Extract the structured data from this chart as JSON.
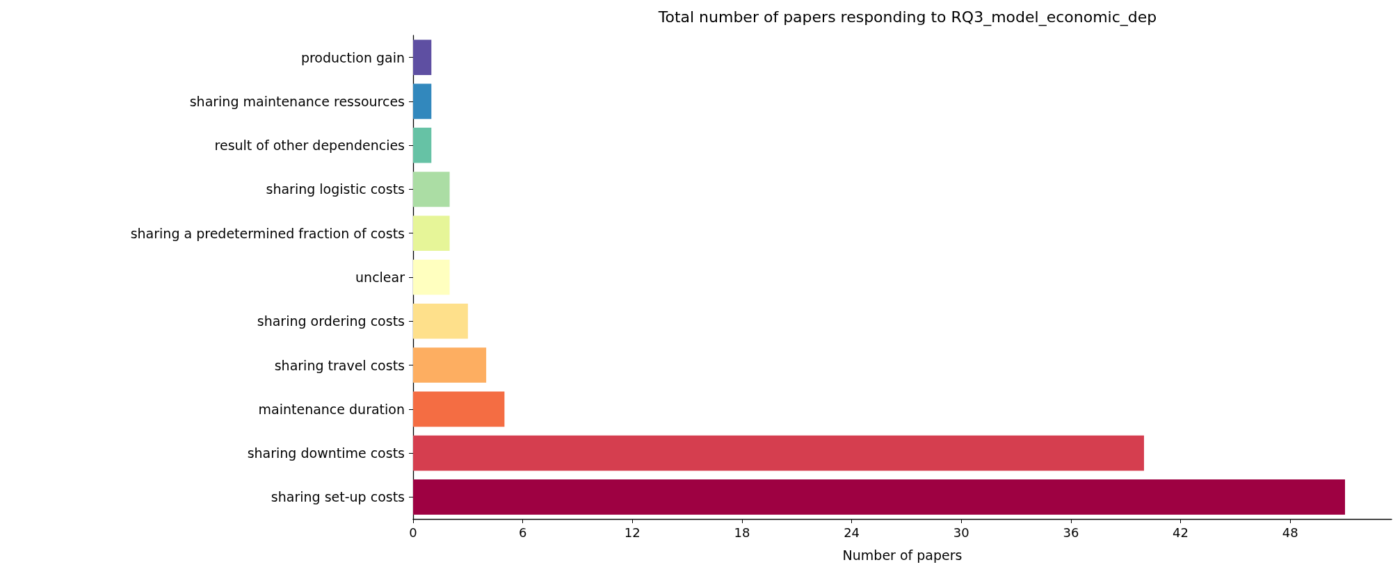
{
  "chart_data": {
    "type": "bar",
    "orientation": "horizontal",
    "title": "Total number of papers responding to RQ3_model_economic_dep",
    "xlabel": "Number of papers",
    "categories": [
      "production gain",
      "sharing maintenance ressources",
      "result of other dependencies",
      "sharing logistic costs",
      "sharing a predetermined fraction of costs",
      "unclear",
      "sharing ordering costs",
      "sharing travel costs",
      "maintenance duration",
      "sharing downtime costs",
      "sharing set-up costs"
    ],
    "values": [
      1,
      1,
      1,
      2,
      2,
      2,
      3,
      4,
      5,
      40,
      51
    ],
    "colors": [
      "#5e4fa2",
      "#3288bd",
      "#66c2a5",
      "#abdda4",
      "#e6f598",
      "#ffffbf",
      "#fee08b",
      "#fdae61",
      "#f46d43",
      "#d53e4f",
      "#9e0142"
    ],
    "xlim": [
      0,
      53.55
    ],
    "xticks": [
      0,
      6,
      12,
      18,
      24,
      30,
      36,
      42,
      48
    ],
    "grid": false
  }
}
